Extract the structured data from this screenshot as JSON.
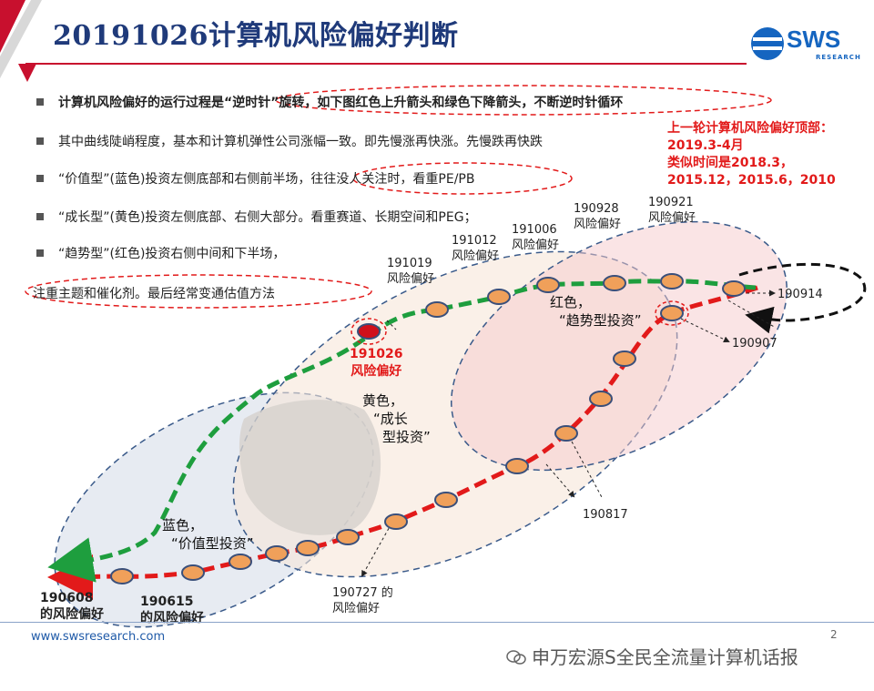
{
  "title": "20191026计算机风险偏好判断",
  "logo": {
    "text": "SWS",
    "sub": "RESEARCH"
  },
  "bullets": [
    "计算机风险偏好的运行过程是“逆时针”旋转，如下图红色上升箭头和绿色下降箭头，不断逆时针循环",
    "其中曲线陡峭程度，基本和计算机弹性公司涨幅一致。即先慢涨再快涨。先慢跌再快跌",
    "“价值型”(蓝色)投资左侧底部和右侧前半场，往往没人关注时，看重PE/PB",
    "“成长型”(黄色)投资左侧底部、右侧大部分。看重赛道、长期空间和PEG；",
    "“趋势型”(红色)投资右侧中间和下半场，"
  ],
  "bullet_cont": "注重主题和催化剂。最后经常变通估值方法",
  "top_note": [
    "上一轮计算机风险偏好顶部：",
    "2019.3-4月",
    "类似时间是2018.3，",
    "2015.12，2015.6，2010"
  ],
  "labels": {
    "l190608": [
      "190608",
      "的风险偏好"
    ],
    "l190615": [
      "190615",
      "的风险偏好"
    ],
    "l190727": [
      "190727 的",
      "风险偏好"
    ],
    "l190817": "190817",
    "l190907": "190907",
    "l190914": "190914",
    "l190921": [
      "190921",
      "风险偏好"
    ],
    "l190928": [
      "190928",
      "风险偏好"
    ],
    "l191006": [
      "191006",
      "风险偏好"
    ],
    "l191012": [
      "191012",
      "风险偏好"
    ],
    "l191019": [
      "191019",
      "风险偏好"
    ],
    "l191026": [
      "191026",
      "风险偏好"
    ]
  },
  "zones": {
    "blue": [
      "蓝色，",
      "“价值型投资”"
    ],
    "yellow": [
      "黄色，",
      "“成长",
      "型投资”"
    ],
    "red": [
      "红色，",
      "“趋势型投资”"
    ]
  },
  "footer": {
    "url": "www.swsresearch.com",
    "page": "2",
    "wechat": "申万宏源S全民全流量计算机话报"
  },
  "colors": {
    "title": "#1f3a7a",
    "red": "#e21a1a",
    "green": "#1e9e3e",
    "node": "#f0a05a",
    "accent_blue": "#1565c0"
  }
}
